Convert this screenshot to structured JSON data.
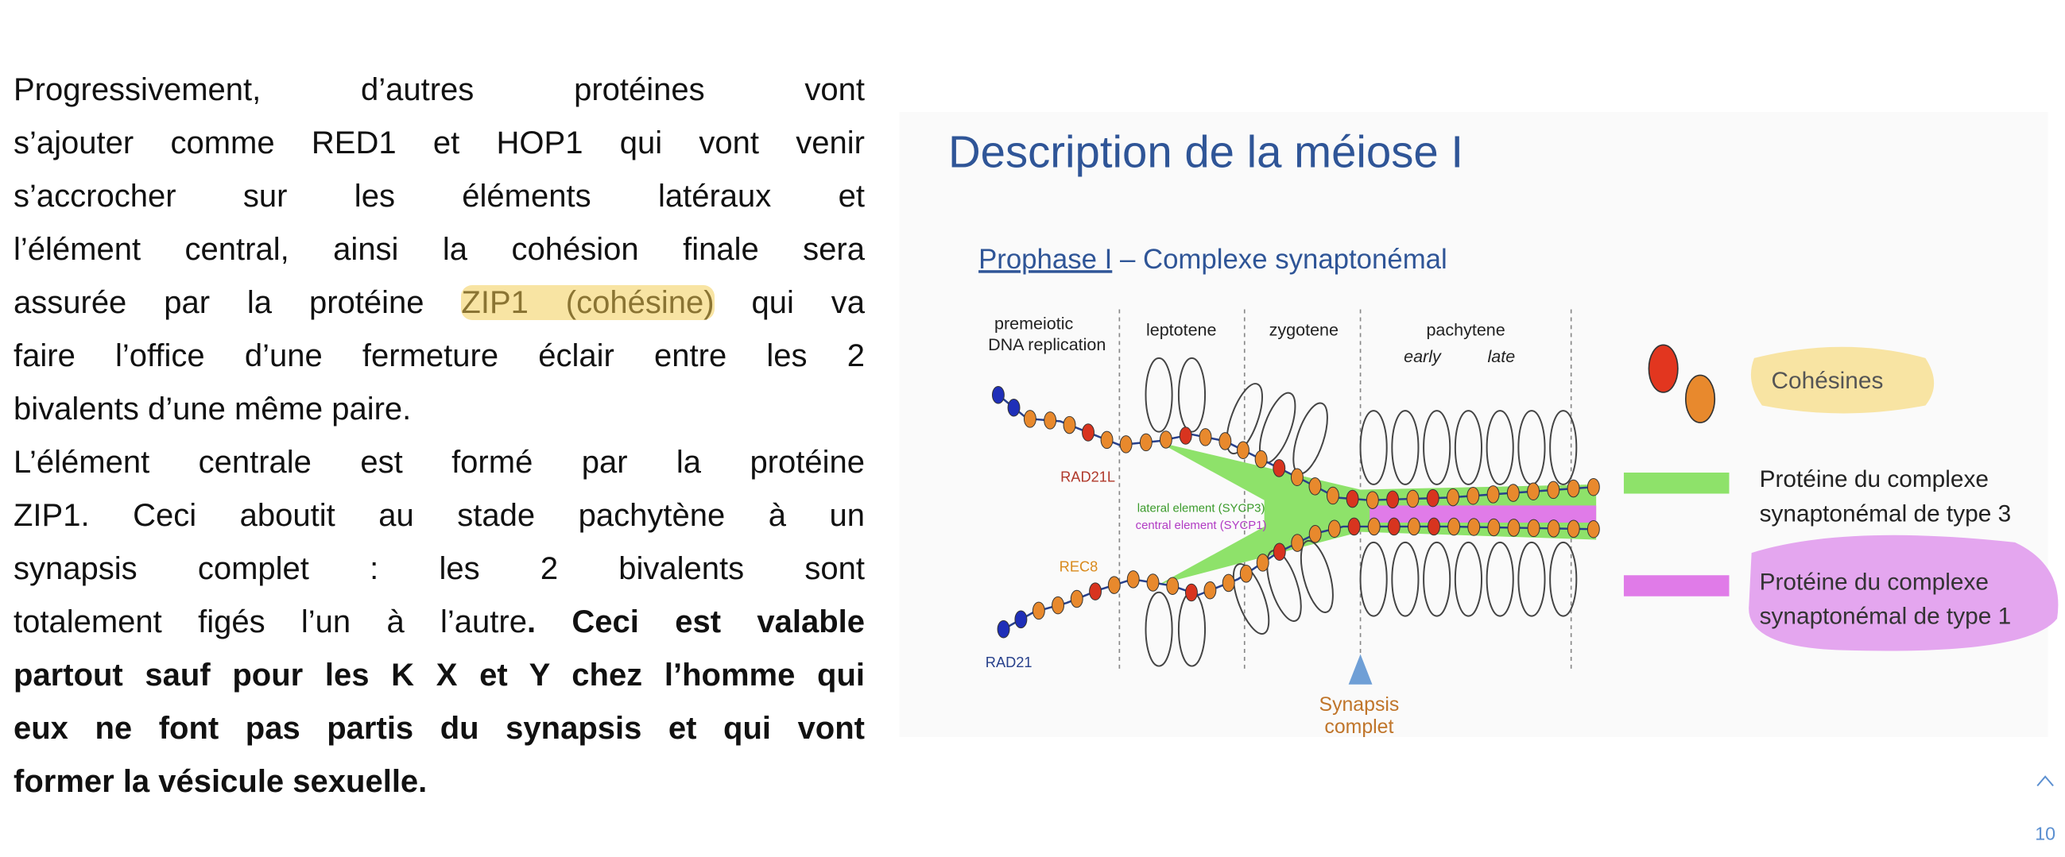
{
  "text": {
    "paragraphs": [
      {
        "lines": [
          [
            {
              "text": "Progressivement, d’autres protéines vont"
            }
          ],
          [
            {
              "text": "s’ajouter comme RED1 et HOP1 qui vont venir"
            }
          ],
          [
            {
              "text": "s’accrocher sur les éléments latéraux et"
            }
          ],
          [
            {
              "text": "l’élément central, ainsi la cohésion finale sera"
            }
          ],
          [
            {
              "text": "assurée par la protéine "
            },
            {
              "text": "ZIP1 (cohésine)",
              "highlight": true
            },
            {
              "text": " qui va"
            }
          ],
          [
            {
              "text": "faire l’office d’une fermeture éclair entre les 2"
            }
          ],
          [
            {
              "text": "bivalents d’une même paire."
            }
          ]
        ]
      },
      {
        "lines": [
          [
            {
              "text": "L’élément centrale est formé par la protéine"
            }
          ],
          [
            {
              "text": "ZIP1. Ceci aboutit au stade pachytène à un"
            }
          ],
          [
            {
              "text": "synapsis complet : les 2 bivalents sont"
            }
          ],
          [
            {
              "text": "totalement figés l’un à l’autre"
            },
            {
              "text": ". Ceci est valable",
              "bold": true
            }
          ],
          [
            {
              "text": "partout sauf pour les K X et Y chez l’homme qui",
              "bold": true
            }
          ],
          [
            {
              "text": "eux ne font pas partis du synapsis et qui vont",
              "bold": true
            }
          ],
          [
            {
              "text": "former la vésicule sexuelle.",
              "bold": true
            }
          ]
        ]
      }
    ]
  },
  "figure": {
    "title": "Description de la méiose I",
    "subtitle_link": "Prophase I",
    "subtitle": " – Complexe synaptonémal",
    "stages": {
      "premeiotic": "premeiotic",
      "replication": "DNA replication",
      "leptotene": "leptotene",
      "zygotene": "zygotene",
      "pachytene": "pachytene",
      "early": "early",
      "late": "late"
    },
    "labels": {
      "rad21l": "RAD21L",
      "lateral": "lateral element (SYCP3)",
      "central": "central element (SYCP1)",
      "rec8": "REC8",
      "rad21": "RAD21"
    },
    "annotation": [
      "Synapsis",
      "complet"
    ],
    "legend": {
      "cohesines": "Cohésines",
      "type3": [
        "Protéine du complexe",
        "synaptonémal de type 3"
      ],
      "type1": [
        "Protéine du complexe",
        "synaptonémal de type 1"
      ]
    }
  },
  "page_number": "10"
}
